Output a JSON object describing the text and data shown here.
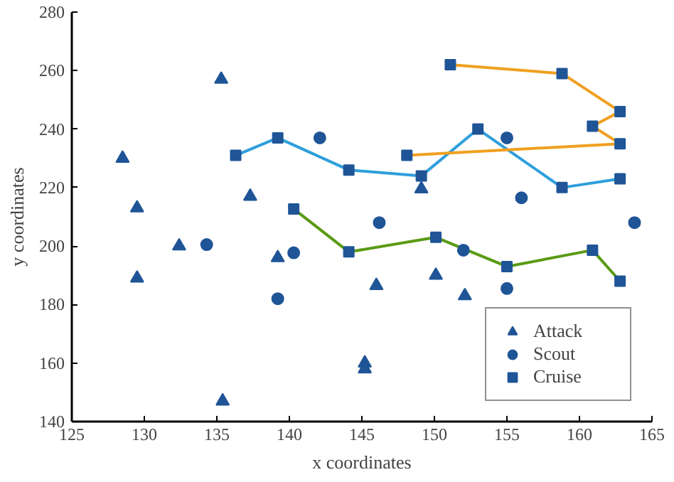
{
  "chart_data": {
    "type": "scatter",
    "xlabel": "x coordinates",
    "ylabel": "y coordinates",
    "xlim": [
      125,
      165
    ],
    "ylim": [
      140,
      280
    ],
    "xticks": [
      125,
      130,
      135,
      140,
      145,
      150,
      155,
      160,
      165
    ],
    "yticks": [
      140,
      160,
      180,
      200,
      220,
      240,
      260,
      280
    ],
    "grid": false,
    "legend": "bottom right",
    "series": [
      {
        "type": "line",
        "marker": "none",
        "color": "#2e9fdc",
        "x": [
          136.3,
          139.2,
          144.1,
          149.1,
          153,
          158.8,
          162.8
        ],
        "values": [
          231,
          237,
          226,
          224,
          240,
          220,
          223
        ]
      },
      {
        "type": "line",
        "marker": "none",
        "color": "#f0a020",
        "x": [
          148.1,
          162.8,
          160.9,
          162.8,
          158.8,
          151.1
        ],
        "values": [
          231,
          235,
          241,
          246,
          259,
          262
        ]
      },
      {
        "type": "line",
        "marker": "none",
        "color": "#5a9a14",
        "x": [
          140.3,
          144.1,
          150.1,
          155,
          160.9,
          162.8
        ],
        "values": [
          212.7,
          198,
          203,
          193,
          198.6,
          188
        ]
      },
      {
        "name": "Attack",
        "marker": "triangle",
        "color": "#1f5597",
        "x": [
          128.5,
          129.5,
          129.5,
          132.4,
          135.3,
          135.4,
          137.3,
          139.2,
          145.2,
          145.2,
          146,
          150.1,
          152.1,
          149.1
        ],
        "values": [
          230,
          213,
          189,
          200,
          257,
          147,
          217,
          196,
          160,
          158,
          186.5,
          190,
          183,
          219.5
        ]
      },
      {
        "name": "Scout",
        "marker": "circle",
        "color": "#1f5597",
        "x": [
          142.1,
          140.3,
          134.3,
          139.2,
          146.2,
          155,
          156,
          152,
          155,
          163.8
        ],
        "values": [
          237,
          197.7,
          200.5,
          182,
          208,
          237,
          216.5,
          198.6,
          185.5,
          208
        ]
      },
      {
        "name": "Cruise",
        "marker": "square",
        "color": "#1f5597",
        "x": [
          136.3,
          139.2,
          144.1,
          149.1,
          153,
          158.8,
          162.8,
          148.1,
          162.8,
          160.9,
          162.8,
          158.8,
          151.1,
          140.3,
          144.1,
          150.1,
          155,
          160.9,
          162.8
        ],
        "values": [
          231,
          237,
          226,
          224,
          240,
          220,
          223,
          231,
          235,
          241,
          246,
          259,
          262,
          212.7,
          198,
          203,
          193,
          198.6,
          188
        ]
      }
    ]
  }
}
